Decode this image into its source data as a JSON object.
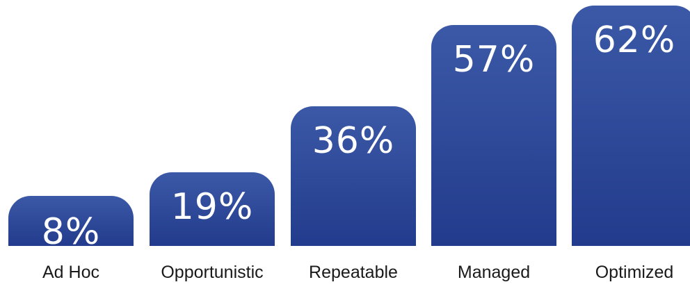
{
  "colors": {
    "bar_top": "#3b59a7",
    "bar_bottom": "#233b8c",
    "value_text": "#ffffff",
    "label_text": "#1a1a1a"
  },
  "chart_data": {
    "type": "bar",
    "categories": [
      "Ad Hoc",
      "Opportunistic",
      "Repeatable",
      "Managed",
      "Optimized"
    ],
    "values": [
      8,
      19,
      36,
      57,
      62
    ],
    "data_labels": [
      "8%",
      "19%",
      "36%",
      "57%",
      "62%"
    ],
    "ylim": [
      0,
      62
    ],
    "grid": false,
    "legend": "none"
  }
}
